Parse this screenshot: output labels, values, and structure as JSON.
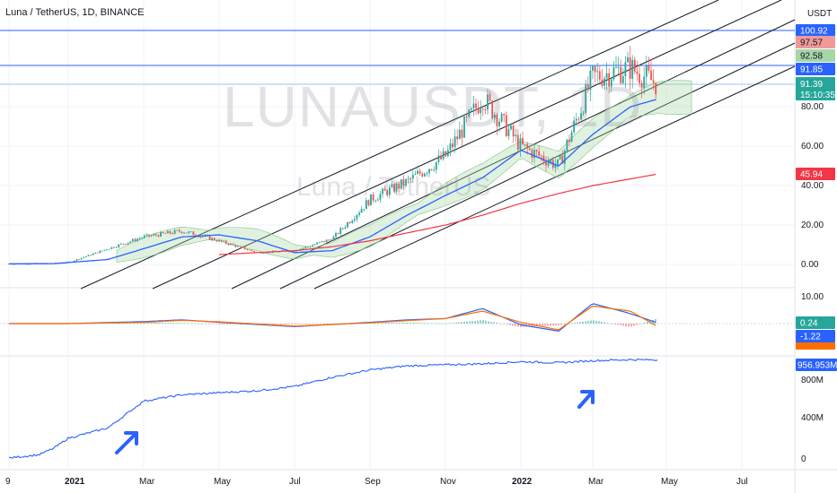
{
  "header": {
    "symbol_title": "Luna / TetherUS, 1D, BINANCE",
    "watermark_main": "LUNAUSDT, 1D",
    "watermark_sub": "Luna / TetherUS"
  },
  "colors": {
    "price_up": "#26a69a",
    "price_down": "#ef5350",
    "ma_blue": "#2962ff",
    "ma200_red": "#f23645",
    "cloud_green": "#a5d6a7",
    "cloud_red": "#ef9a9a",
    "indicator_blue": "#2962ff",
    "signal_orange": "#ff6d00",
    "grid": "#f0f3fa",
    "channel_line": "#131722"
  },
  "chart_data": [
    {
      "type": "line",
      "name": "price-pane",
      "currency": "USDT",
      "x_tick_labels": [
        "9",
        "2021",
        "Mar",
        "May",
        "Jul",
        "Sep",
        "Nov",
        "2022",
        "Mar",
        "May",
        "Jul"
      ],
      "y_tick_labels": [
        "0.00",
        "20.00",
        "40.00",
        "60.00",
        "80.00"
      ],
      "ylim": [
        -5,
        115
      ],
      "series": [
        {
          "x": [
            "2020-09",
            "2020-10",
            "2020-11",
            "2020-12",
            "2021-01",
            "2021-02",
            "2021-03",
            "2021-04",
            "2021-05",
            "2021-06",
            "2021-07",
            "2021-08",
            "2021-09",
            "2021-10",
            "2021-11",
            "2021-12",
            "2022-01",
            "2022-02",
            "2022-03",
            "2022-04",
            "2022-04-24"
          ],
          "values": [
            0.3,
            0.4,
            0.4,
            0.5,
            1,
            8,
            14,
            17,
            12,
            6,
            7,
            13,
            33,
            42,
            55,
            85,
            60,
            50,
            95,
            100,
            91.39
          ]
        },
        {
          "x": [
            "2020-09",
            "2020-12",
            "2021-02",
            "2021-03",
            "2021-04",
            "2021-05",
            "2021-06",
            "2021-07",
            "2021-08",
            "2021-09",
            "2021-10",
            "2021-11",
            "2021-12",
            "2022-01",
            "2022-02",
            "2022-03",
            "2022-04",
            "2022-04-24"
          ],
          "values": [
            0.3,
            0.4,
            2.5,
            8,
            14,
            15,
            12,
            6,
            7,
            14,
            25,
            35,
            44,
            58,
            50,
            66,
            80,
            84
          ]
        },
        {
          "x": [
            "2021-05",
            "2021-07",
            "2021-08",
            "2021-09",
            "2021-10",
            "2021-11",
            "2021-12",
            "2022-01",
            "2022-02",
            "2022-03",
            "2022-04-24"
          ],
          "values": [
            5,
            7,
            9,
            12,
            16,
            20,
            25,
            31,
            36,
            40,
            45.94
          ]
        }
      ],
      "price_tags": [
        "100.92",
        "97.57",
        "92.58",
        "91.85",
        "91.39",
        "45.94"
      ],
      "countdown": "15:10:35"
    },
    {
      "type": "line",
      "name": "oscillator-pane",
      "y_tick_labels": [
        "10.00"
      ],
      "series": [
        {
          "x": [
            "2020-09",
            "2021-01",
            "2021-03",
            "2021-04",
            "2021-05",
            "2021-07",
            "2021-09",
            "2021-10",
            "2021-11",
            "2021-12",
            "2022-01",
            "2022-02",
            "2022-03",
            "2022-04",
            "2022-04-24"
          ],
          "values": [
            0,
            0,
            0.8,
            1.5,
            0.5,
            -1.2,
            0.5,
            1.5,
            2,
            6,
            -0.5,
            -3,
            8,
            4,
            0.24
          ]
        },
        {
          "x": [
            "2020-09",
            "2021-01",
            "2021-03",
            "2021-04",
            "2021-05",
            "2021-07",
            "2021-09",
            "2021-10",
            "2021-11",
            "2021-12",
            "2022-01",
            "2022-02",
            "2022-03",
            "2022-04",
            "2022-04-24"
          ],
          "values": [
            0,
            0,
            0.5,
            1.3,
            0.7,
            -1,
            0.3,
            1.2,
            2,
            5,
            0.5,
            -2.5,
            7,
            5,
            -1.22
          ]
        }
      ],
      "value_tags": [
        "0.24",
        "-1.22"
      ]
    },
    {
      "type": "line",
      "name": "volume-pane",
      "y_tick_labels": [
        "0",
        "400M",
        "800M"
      ],
      "series": [
        {
          "x": [
            "2020-09",
            "2020-11",
            "2020-12",
            "2021-01",
            "2021-02",
            "2021-03",
            "2021-04",
            "2021-05",
            "2021-06",
            "2021-07",
            "2021-08",
            "2021-09",
            "2021-10",
            "2021-11",
            "2021-12",
            "2022-01",
            "2022-02",
            "2022-03",
            "2022-04",
            "2022-04-24"
          ],
          "values": [
            10,
            40,
            100,
            200,
            300,
            560,
            620,
            640,
            660,
            700,
            790,
            860,
            900,
            910,
            920,
            940,
            930,
            950,
            960,
            956.953
          ]
        }
      ],
      "value_tag": "956.953M"
    }
  ]
}
